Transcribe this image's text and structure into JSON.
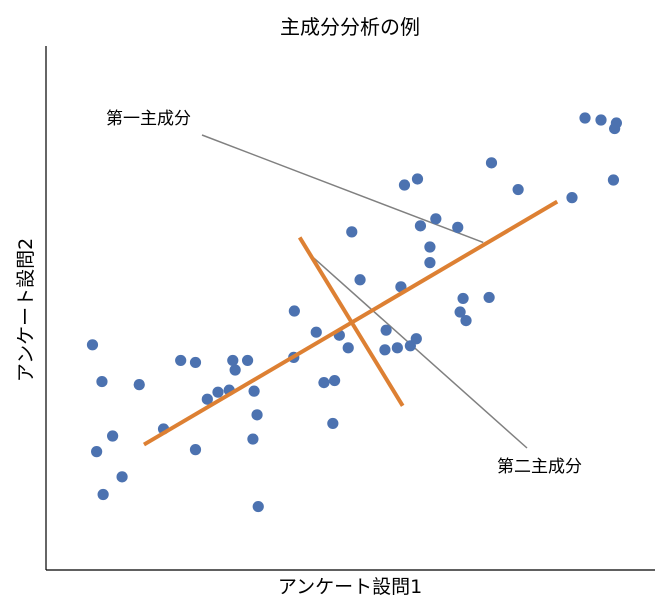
{
  "chart_data": {
    "type": "scatter",
    "title": "主成分分析の例",
    "xlabel": "アンケート設問1",
    "ylabel": "アンケート設問2",
    "grid": false,
    "xlim": [
      0,
      100
    ],
    "ylim": [
      0,
      100
    ],
    "colors": {
      "points": "#4c72b0",
      "components": "#dd8033",
      "annotation_line": "#808080"
    },
    "points": [
      {
        "x": 6.5,
        "y": 42.7
      },
      {
        "x": 8.1,
        "y": 35.4
      },
      {
        "x": 7.2,
        "y": 21.5
      },
      {
        "x": 9.9,
        "y": 24.6
      },
      {
        "x": 8.3,
        "y": 13.0
      },
      {
        "x": 11.5,
        "y": 16.5
      },
      {
        "x": 14.4,
        "y": 34.8
      },
      {
        "x": 18.5,
        "y": 26.0
      },
      {
        "x": 21.4,
        "y": 39.6
      },
      {
        "x": 23.9,
        "y": 39.2
      },
      {
        "x": 23.9,
        "y": 21.9
      },
      {
        "x": 25.9,
        "y": 31.9
      },
      {
        "x": 27.7,
        "y": 33.3
      },
      {
        "x": 29.6,
        "y": 33.7
      },
      {
        "x": 30.2,
        "y": 39.6
      },
      {
        "x": 30.6,
        "y": 37.7
      },
      {
        "x": 32.7,
        "y": 39.6
      },
      {
        "x": 33.8,
        "y": 33.5
      },
      {
        "x": 34.3,
        "y": 28.8
      },
      {
        "x": 33.6,
        "y": 24.0
      },
      {
        "x": 34.5,
        "y": 10.6
      },
      {
        "x": 40.6,
        "y": 49.4
      },
      {
        "x": 40.5,
        "y": 40.2
      },
      {
        "x": 44.3,
        "y": 45.2
      },
      {
        "x": 45.6,
        "y": 35.2
      },
      {
        "x": 47.4,
        "y": 35.6
      },
      {
        "x": 47.1,
        "y": 27.1
      },
      {
        "x": 48.2,
        "y": 44.6
      },
      {
        "x": 49.7,
        "y": 42.1
      },
      {
        "x": 50.3,
        "y": 65.1
      },
      {
        "x": 51.7,
        "y": 55.6
      },
      {
        "x": 55.9,
        "y": 41.7
      },
      {
        "x": 56.1,
        "y": 45.6
      },
      {
        "x": 58.0,
        "y": 42.1
      },
      {
        "x": 58.6,
        "y": 54.2
      },
      {
        "x": 60.2,
        "y": 42.5
      },
      {
        "x": 61.2,
        "y": 43.9
      },
      {
        "x": 59.2,
        "y": 74.4
      },
      {
        "x": 61.4,
        "y": 75.6
      },
      {
        "x": 61.9,
        "y": 66.3
      },
      {
        "x": 63.5,
        "y": 59.0
      },
      {
        "x": 63.5,
        "y": 62.1
      },
      {
        "x": 64.5,
        "y": 67.7
      },
      {
        "x": 68.2,
        "y": 66.0
      },
      {
        "x": 68.6,
        "y": 49.2
      },
      {
        "x": 69.1,
        "y": 51.9
      },
      {
        "x": 69.6,
        "y": 47.5
      },
      {
        "x": 73.5,
        "y": 52.1
      },
      {
        "x": 73.9,
        "y": 78.8
      },
      {
        "x": 78.4,
        "y": 73.5
      },
      {
        "x": 87.5,
        "y": 71.9
      },
      {
        "x": 89.7,
        "y": 87.7
      },
      {
        "x": 92.4,
        "y": 87.3
      },
      {
        "x": 94.7,
        "y": 85.6
      },
      {
        "x": 95.0,
        "y": 86.7
      },
      {
        "x": 94.5,
        "y": 75.4
      }
    ],
    "components": [
      {
        "name": "第一主成分",
        "start": {
          "x": 15.2,
          "y": 22.9
        },
        "end": {
          "x": 85.0,
          "y": 71.1
        }
      },
      {
        "name": "第二主成分",
        "start": {
          "x": 41.5,
          "y": 64.0
        },
        "end": {
          "x": 58.9,
          "y": 30.6
        }
      }
    ],
    "annotations": [
      {
        "text": "第一主成分",
        "target": {
          "x": 72.5,
          "y": 63.0
        }
      },
      {
        "text": "第二主成分",
        "target": {
          "x": 43.8,
          "y": 60.0
        }
      }
    ]
  }
}
